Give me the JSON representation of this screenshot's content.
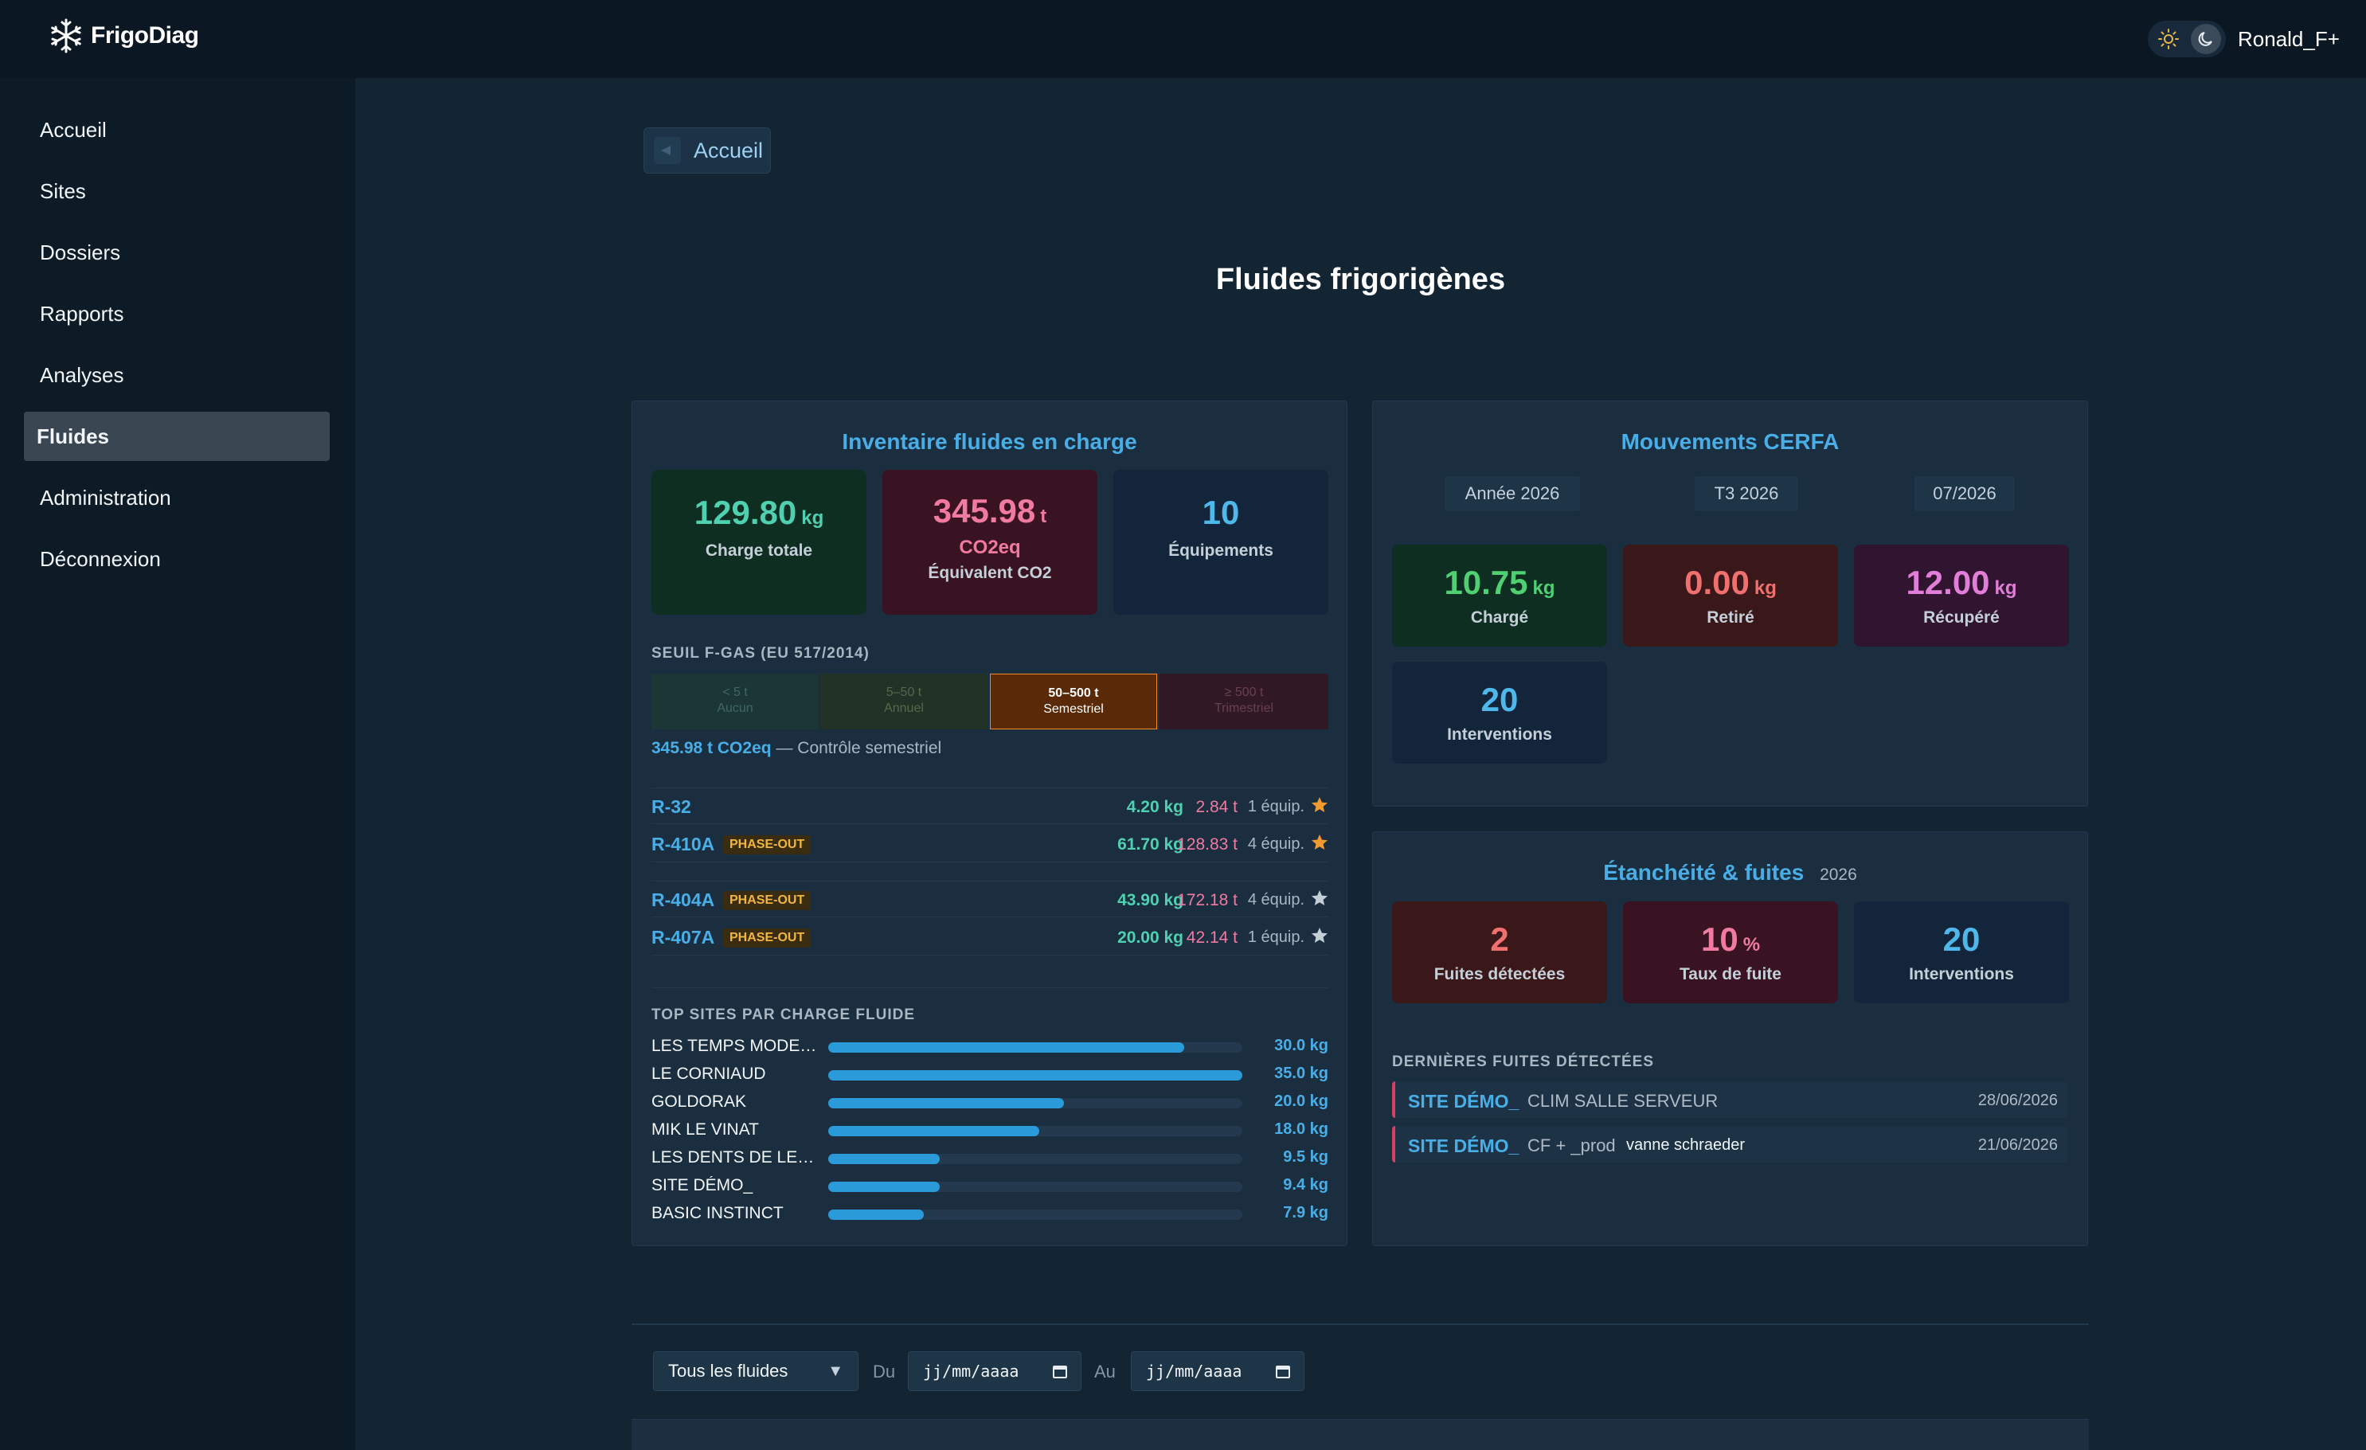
{
  "app": {
    "name": "FrigoDiag",
    "user": "Ronald_F+"
  },
  "nav": [
    {
      "label": "Accueil"
    },
    {
      "label": "Sites"
    },
    {
      "label": "Dossiers"
    },
    {
      "label": "Rapports"
    },
    {
      "label": "Analyses"
    },
    {
      "label": "Fluides",
      "active": true
    },
    {
      "label": "Administration"
    },
    {
      "label": "Déconnexion"
    }
  ],
  "back_label": "Accueil",
  "page_title": "Fluides frigorigènes",
  "inventory": {
    "title": "Inventaire fluides en charge",
    "stats": [
      {
        "value": "129.80",
        "unit": "kg",
        "label": "Charge totale"
      },
      {
        "value": "345.98",
        "unit": "t",
        "unit2": "CO2eq",
        "label": "Équivalent CO2"
      },
      {
        "value": "10",
        "unit": "",
        "label": "Équipements"
      }
    ],
    "seuil_caption": "SEUIL F-GAS (EU 517/2014)",
    "seuil": [
      {
        "range": "< 5 t",
        "label": "Aucun"
      },
      {
        "range": "5–50 t",
        "label": "Annuel"
      },
      {
        "range": "50–500 t",
        "label": "Semestriel",
        "active": true
      },
      {
        "range": "≥ 500 t",
        "label": "Trimestriel"
      }
    ],
    "seuil_value": "345.98 t CO2eq",
    "seuil_note": "— Contrôle semestriel",
    "fluids": [
      {
        "name": "R-32",
        "badge": "",
        "kg": "4.20 kg",
        "t": "2.84 t",
        "equip": "1 équip.",
        "star": "filled"
      },
      {
        "name": "R-410A",
        "badge": "PHASE-OUT",
        "kg": "61.70 kg",
        "t": "128.83 t",
        "equip": "4 équip.",
        "star": "filled"
      },
      {
        "name": "R-404A",
        "badge": "PHASE-OUT",
        "kg": "43.90 kg",
        "t": "172.18 t",
        "equip": "4 équip.",
        "star": "outline"
      },
      {
        "name": "R-407A",
        "badge": "PHASE-OUT",
        "kg": "20.00 kg",
        "t": "42.14 t",
        "equip": "1 équip.",
        "star": "outline"
      }
    ],
    "top_sites_caption": "TOP SITES PAR CHARGE FLUIDE",
    "top_sites": [
      {
        "name": "LES TEMPS MODE…",
        "value": "30.0 kg",
        "fraction": 0.86
      },
      {
        "name": "LE CORNIAUD",
        "value": "35.0 kg",
        "fraction": 1.0
      },
      {
        "name": "GOLDORAK",
        "value": "20.0 kg",
        "fraction": 0.57
      },
      {
        "name": "MIK LE VINAT",
        "value": "18.0 kg",
        "fraction": 0.51
      },
      {
        "name": "LES DENTS DE LE…",
        "value": "9.5 kg",
        "fraction": 0.27
      },
      {
        "name": "SITE DÉMO_",
        "value": "9.4 kg",
        "fraction": 0.27
      },
      {
        "name": "BASIC INSTINCT",
        "value": "7.9 kg",
        "fraction": 0.23
      }
    ]
  },
  "cerfa": {
    "title": "Mouvements CERFA",
    "periods": [
      "Année 2026",
      "T3 2026",
      "07/2026"
    ],
    "stats": [
      {
        "value": "10.75",
        "unit": "kg",
        "label": "Chargé"
      },
      {
        "value": "0.00",
        "unit": "kg",
        "label": "Retiré"
      },
      {
        "value": "12.00",
        "unit": "kg",
        "label": "Récupéré"
      },
      {
        "value": "20",
        "unit": "",
        "label": "Interventions"
      }
    ]
  },
  "leaks": {
    "title": "Étanchéité & fuites",
    "year": "2026",
    "stats": [
      {
        "value": "2",
        "unit": "",
        "label": "Fuites détectées"
      },
      {
        "value": "10",
        "unit": "%",
        "label": "Taux de fuite"
      },
      {
        "value": "20",
        "unit": "",
        "label": "Interventions"
      }
    ],
    "recent_caption": "DERNIÈRES FUITES DÉTECTÉES",
    "recent": [
      {
        "site": "SITE DÉMO_",
        "equip": "CLIM SALLE SERVEUR",
        "extra": "",
        "date": "28/06/2026"
      },
      {
        "site": "SITE DÉMO_",
        "equip": "CF + _prod",
        "extra": "vanne schraeder",
        "date": "21/06/2026"
      }
    ]
  },
  "filters": {
    "fluid_select": "Tous les fluides",
    "from_label": "Du",
    "to_label": "Au",
    "date_placeholder": "jj/mm/aaaa"
  },
  "colors": {
    "accent": "#4aaee6",
    "teal": "#4fd0b0",
    "pink": "#f07aa0",
    "warning": "#f2b640"
  }
}
